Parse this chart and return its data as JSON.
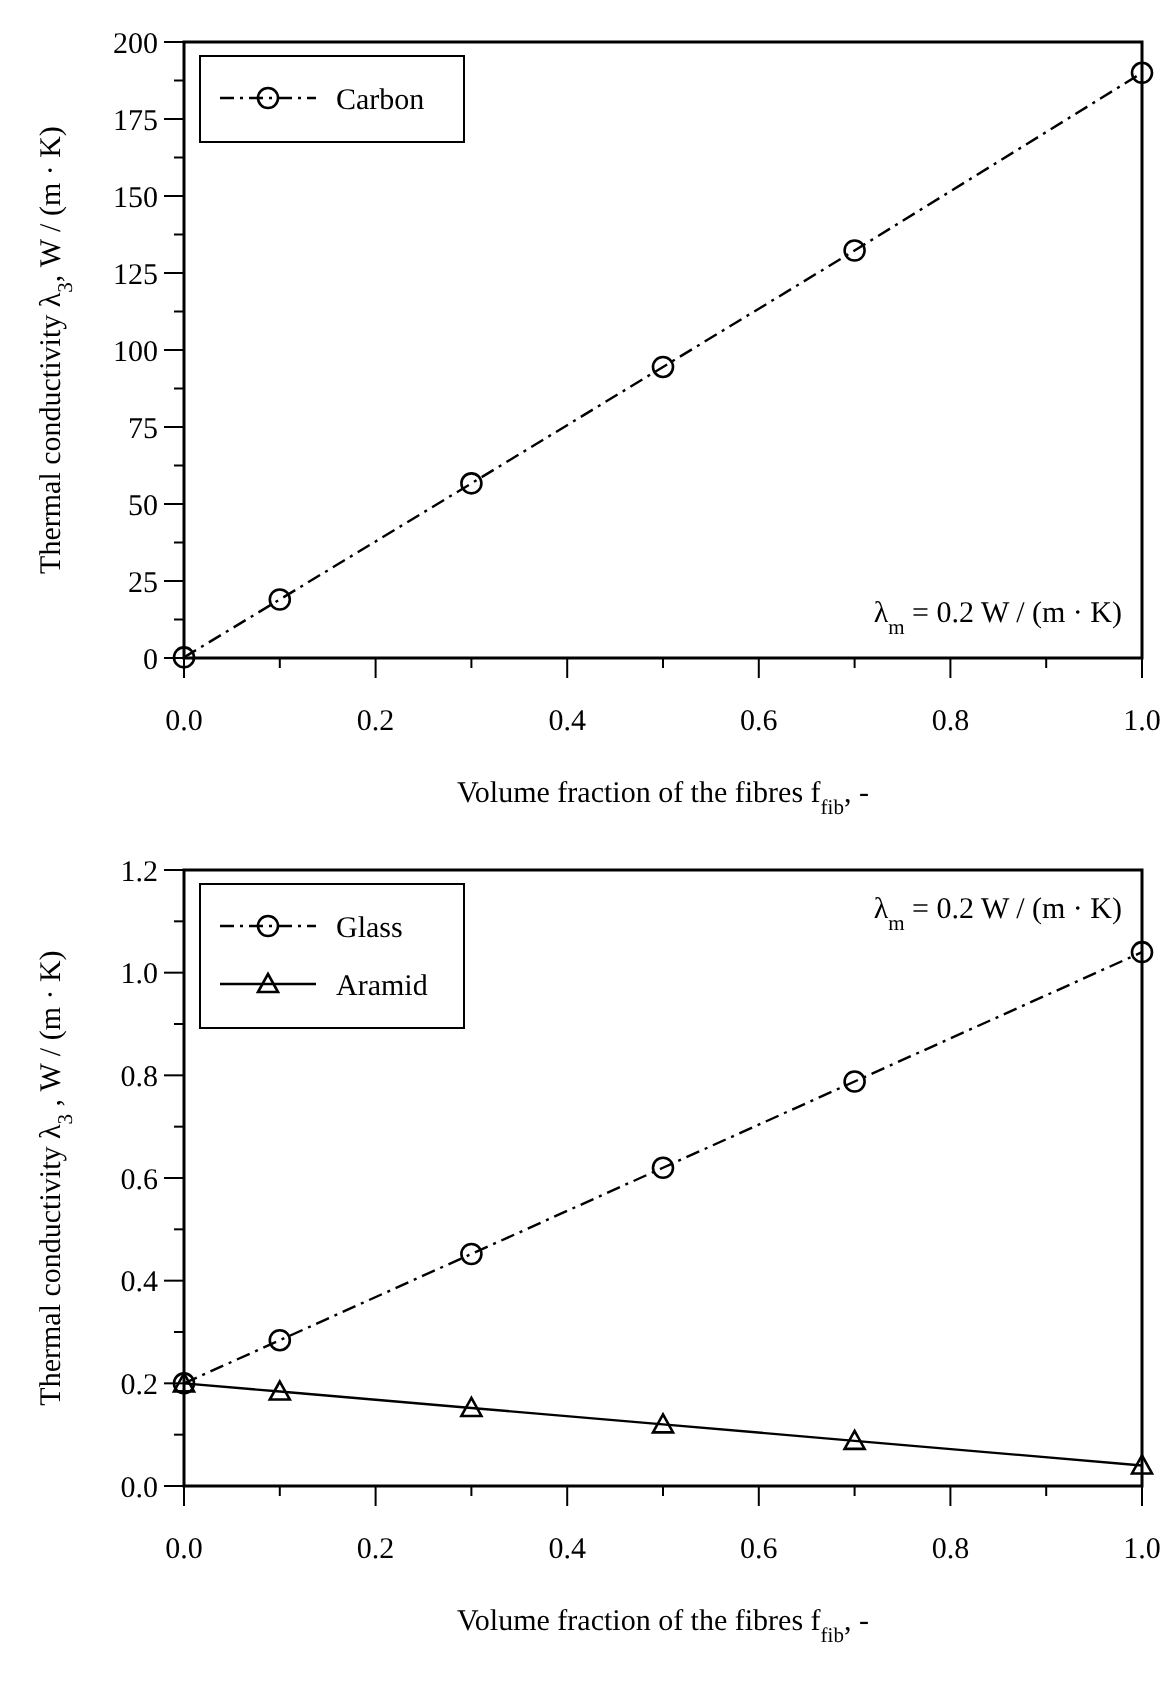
{
  "chart_data": [
    {
      "type": "line",
      "xlabel": "Volume fraction of the fibres f$_{fib}$, -",
      "ylabel": "Thermal conductivity λ$_{3}$, W / (m · K)",
      "x": [
        0,
        0.1,
        0.3,
        0.5,
        0.7,
        1.0
      ],
      "series": [
        {
          "name": "Carbon",
          "color": "#000000",
          "values": [
            0.2,
            19,
            56.7,
            94.5,
            132.3,
            190
          ],
          "marker": "circle",
          "line_style": "dashed"
        }
      ],
      "xlim": [
        0,
        1
      ],
      "xticks": [
        {
          "value": 0,
          "label": "0.0"
        },
        {
          "value": 0.1,
          "label": null
        },
        0.2,
        {
          "value": 0.3,
          "label": null
        },
        0.4,
        {
          "value": 0.5,
          "label": null
        },
        0.6,
        {
          "value": 0.7,
          "label": null
        },
        0.8,
        {
          "value": 0.9,
          "label": null
        },
        {
          "value": 1,
          "label": "1.0"
        }
      ],
      "ylim": [
        0,
        200
      ],
      "yticks": [
        0,
        {
          "value": 12.5,
          "label": null
        },
        25,
        {
          "value": 37.5,
          "label": null
        },
        50,
        {
          "value": 62.5,
          "label": null
        },
        75,
        {
          "value": 87.5,
          "label": null
        },
        100,
        {
          "value": 112.5,
          "label": null
        },
        125,
        {
          "value": 137.5,
          "label": null
        },
        150,
        {
          "value": 162.5,
          "label": null
        },
        175,
        {
          "value": 187.5,
          "label": null
        },
        200
      ],
      "legend": "top left",
      "grid": false,
      "annotations": [
        "λ$_{m}$ = 0.2 W / (m · K)"
      ]
    },
    {
      "type": "line",
      "xlabel": "Volume fraction of the fibres f$_{fib}$, -",
      "ylabel": "Thermal conductivity λ$_{3}$ , W / (m · K)",
      "x": [
        0,
        0.1,
        0.3,
        0.5,
        0.7,
        1.0
      ],
      "series": [
        {
          "name": "Glass",
          "color": "#000000",
          "values": [
            0.2,
            0.284,
            0.452,
            0.62,
            0.788,
            1.04
          ],
          "marker": "circle",
          "line_style": "dashed"
        },
        {
          "name": "Aramid",
          "color": "#000000",
          "values": [
            0.2,
            0.184,
            0.152,
            0.12,
            0.088,
            0.04
          ],
          "marker": "triangle",
          "line_style": "solid"
        }
      ],
      "xlim": [
        0,
        1
      ],
      "xticks": [
        {
          "value": 0,
          "label": "0.0"
        },
        {
          "value": 0.1,
          "label": null
        },
        0.2,
        {
          "value": 0.3,
          "label": null
        },
        0.4,
        {
          "value": 0.5,
          "label": null
        },
        0.6,
        {
          "value": 0.7,
          "label": null
        },
        0.8,
        {
          "value": 0.9,
          "label": null
        },
        {
          "value": 1,
          "label": "1.0"
        }
      ],
      "ylim": [
        0,
        1.2
      ],
      "yticks": [
        {
          "value": 0,
          "label": "0.0"
        },
        {
          "value": 0.1,
          "label": null
        },
        0.2,
        {
          "value": 0.3,
          "label": null
        },
        0.4,
        {
          "value": 0.5,
          "label": null
        },
        0.6,
        {
          "value": 0.7,
          "label": null
        },
        0.8,
        {
          "value": 0.9,
          "label": null
        },
        {
          "value": 1,
          "label": "1.0"
        },
        {
          "value": 1.1,
          "label": null
        },
        1.2
      ],
      "legend": "top left",
      "grid": false,
      "annotations": [
        "λ$_{m}$ = 0.2 W / (m · K)"
      ]
    }
  ]
}
